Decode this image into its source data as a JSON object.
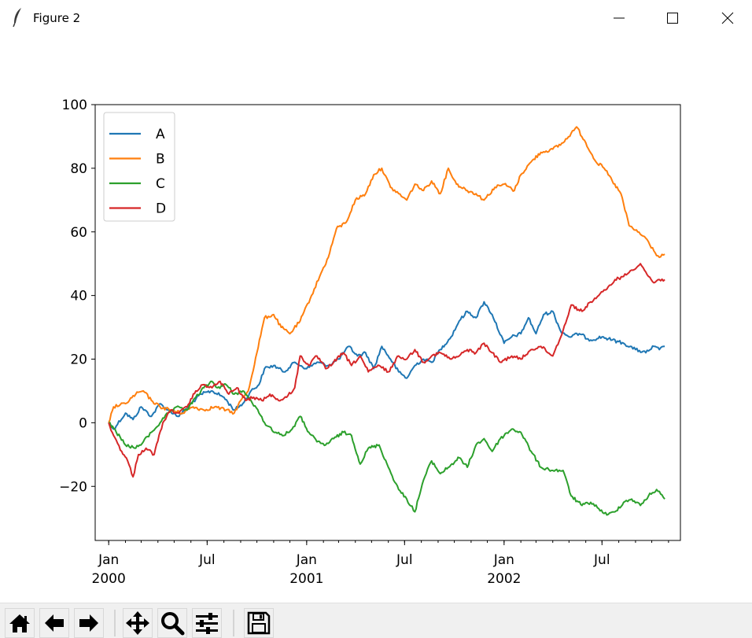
{
  "window": {
    "title": "Figure 2",
    "controls": [
      "minimize-icon",
      "maximize-icon",
      "close-icon"
    ],
    "app_icon": "feather-icon"
  },
  "toolbar": {
    "tools": [
      {
        "name": "home",
        "icon": "home-icon"
      },
      {
        "name": "back",
        "icon": "arrow-left-icon"
      },
      {
        "name": "forward",
        "icon": "arrow-right-icon"
      },
      {
        "name": "pan",
        "icon": "move-icon"
      },
      {
        "name": "zoom",
        "icon": "magnifier-icon"
      },
      {
        "name": "subplots",
        "icon": "sliders-icon"
      },
      {
        "name": "save",
        "icon": "floppy-icon"
      }
    ]
  },
  "chart_data": {
    "type": "line",
    "title": "",
    "xlabel": "",
    "ylabel": "",
    "x_range": [
      "1999-12-07",
      "2002-11-23"
    ],
    "ylim": [
      -37,
      100
    ],
    "yticks": [
      100,
      80,
      60,
      40,
      20,
      0,
      -20
    ],
    "xticks": [
      {
        "date": "2000-01-01",
        "label": "Jan",
        "sub": "2000"
      },
      {
        "date": "2000-07-01",
        "label": "Jul",
        "sub": ""
      },
      {
        "date": "2001-01-01",
        "label": "Jan",
        "sub": "2001"
      },
      {
        "date": "2001-07-01",
        "label": "Jul",
        "sub": ""
      },
      {
        "date": "2002-01-01",
        "label": "Jan",
        "sub": "2002"
      },
      {
        "date": "2002-07-01",
        "label": "Jul",
        "sub": ""
      }
    ],
    "minor_ticks": "monthly",
    "grid": false,
    "legend": "upper-left",
    "series": [
      {
        "name": "A",
        "color": "#1f77b4",
        "points": [
          [
            "2000-01-01",
            0
          ],
          [
            "2000-01-10",
            -2
          ],
          [
            "2000-02-01",
            3
          ],
          [
            "2000-02-15",
            1
          ],
          [
            "2000-03-01",
            5
          ],
          [
            "2000-03-20",
            2
          ],
          [
            "2000-04-05",
            6
          ],
          [
            "2000-04-20",
            4
          ],
          [
            "2000-05-10",
            2
          ],
          [
            "2000-06-01",
            6
          ],
          [
            "2000-06-20",
            9
          ],
          [
            "2000-07-10",
            10
          ],
          [
            "2000-08-01",
            8
          ],
          [
            "2000-08-20",
            4
          ],
          [
            "2000-09-05",
            6
          ],
          [
            "2000-09-20",
            10
          ],
          [
            "2000-10-05",
            12
          ],
          [
            "2000-10-15",
            17
          ],
          [
            "2000-11-01",
            18
          ],
          [
            "2000-11-20",
            16
          ],
          [
            "2000-12-10",
            19
          ],
          [
            "2001-01-01",
            17
          ],
          [
            "2001-01-20",
            19
          ],
          [
            "2001-02-10",
            18
          ],
          [
            "2001-03-01",
            20
          ],
          [
            "2001-03-20",
            24
          ],
          [
            "2001-04-05",
            21
          ],
          [
            "2001-04-20",
            22
          ],
          [
            "2001-05-05",
            17
          ],
          [
            "2001-05-20",
            24
          ],
          [
            "2001-06-05",
            20
          ],
          [
            "2001-06-20",
            16
          ],
          [
            "2001-07-05",
            14
          ],
          [
            "2001-07-20",
            18
          ],
          [
            "2001-08-05",
            20
          ],
          [
            "2001-08-20",
            19
          ],
          [
            "2001-09-05",
            23
          ],
          [
            "2001-09-25",
            27
          ],
          [
            "2001-10-10",
            32
          ],
          [
            "2001-10-25",
            35
          ],
          [
            "2001-11-10",
            33
          ],
          [
            "2001-11-25",
            38
          ],
          [
            "2001-12-10",
            34
          ],
          [
            "2002-01-01",
            25
          ],
          [
            "2002-01-15",
            27
          ],
          [
            "2002-02-01",
            28
          ],
          [
            "2002-02-15",
            33
          ],
          [
            "2002-03-01",
            28
          ],
          [
            "2002-03-15",
            34
          ],
          [
            "2002-04-01",
            35
          ],
          [
            "2002-04-15",
            29
          ],
          [
            "2002-05-01",
            27
          ],
          [
            "2002-05-20",
            28
          ],
          [
            "2002-06-10",
            26
          ],
          [
            "2002-07-01",
            27
          ],
          [
            "2002-07-20",
            26
          ],
          [
            "2002-08-10",
            25
          ],
          [
            "2002-09-01",
            23
          ],
          [
            "2002-09-20",
            22
          ],
          [
            "2002-10-05",
            24
          ],
          [
            "2002-10-15",
            23
          ],
          [
            "2002-10-25",
            24
          ]
        ]
      },
      {
        "name": "B",
        "color": "#ff7f0e",
        "points": [
          [
            "2000-01-01",
            0
          ],
          [
            "2000-01-10",
            5
          ],
          [
            "2000-02-01",
            6
          ],
          [
            "2000-02-20",
            9
          ],
          [
            "2000-03-05",
            10
          ],
          [
            "2000-03-20",
            7
          ],
          [
            "2000-04-05",
            5
          ],
          [
            "2000-04-25",
            4
          ],
          [
            "2000-05-15",
            3
          ],
          [
            "2000-06-05",
            5
          ],
          [
            "2000-06-25",
            4
          ],
          [
            "2000-07-15",
            5
          ],
          [
            "2000-08-05",
            4
          ],
          [
            "2000-08-20",
            3
          ],
          [
            "2000-09-01",
            7
          ],
          [
            "2000-09-15",
            10
          ],
          [
            "2000-10-01",
            22
          ],
          [
            "2000-10-15",
            33
          ],
          [
            "2000-11-01",
            34
          ],
          [
            "2000-11-15",
            30
          ],
          [
            "2000-12-01",
            28
          ],
          [
            "2000-12-20",
            32
          ],
          [
            "2001-01-10",
            40
          ],
          [
            "2001-01-25",
            46
          ],
          [
            "2001-02-10",
            52
          ],
          [
            "2001-02-25",
            61
          ],
          [
            "2001-03-15",
            63
          ],
          [
            "2001-04-01",
            70
          ],
          [
            "2001-04-20",
            72
          ],
          [
            "2001-05-05",
            78
          ],
          [
            "2001-05-20",
            80
          ],
          [
            "2001-06-05",
            74
          ],
          [
            "2001-06-20",
            72
          ],
          [
            "2001-07-05",
            70
          ],
          [
            "2001-07-20",
            75
          ],
          [
            "2001-08-05",
            73
          ],
          [
            "2001-08-20",
            76
          ],
          [
            "2001-09-05",
            72
          ],
          [
            "2001-09-20",
            80
          ],
          [
            "2001-10-05",
            75
          ],
          [
            "2001-10-25",
            73
          ],
          [
            "2001-11-10",
            72
          ],
          [
            "2001-11-25",
            70
          ],
          [
            "2001-12-15",
            74
          ],
          [
            "2002-01-01",
            75
          ],
          [
            "2002-01-20",
            73
          ],
          [
            "2002-02-01",
            78
          ],
          [
            "2002-02-20",
            82
          ],
          [
            "2002-03-10",
            85
          ],
          [
            "2002-04-01",
            86
          ],
          [
            "2002-04-20",
            88
          ],
          [
            "2002-05-05",
            91
          ],
          [
            "2002-05-15",
            93
          ],
          [
            "2002-06-01",
            88
          ],
          [
            "2002-06-20",
            82
          ],
          [
            "2002-07-05",
            80
          ],
          [
            "2002-07-20",
            76
          ],
          [
            "2002-08-05",
            72
          ],
          [
            "2002-08-20",
            62
          ],
          [
            "2002-09-05",
            60
          ],
          [
            "2002-09-20",
            58
          ],
          [
            "2002-10-05",
            54
          ],
          [
            "2002-10-15",
            52
          ],
          [
            "2002-10-25",
            53
          ]
        ]
      },
      {
        "name": "C",
        "color": "#2ca02c",
        "points": [
          [
            "2000-01-01",
            0
          ],
          [
            "2000-01-15",
            -3
          ],
          [
            "2000-02-01",
            -7
          ],
          [
            "2000-02-20",
            -8
          ],
          [
            "2000-03-05",
            -6
          ],
          [
            "2000-03-20",
            -3
          ],
          [
            "2000-04-05",
            0
          ],
          [
            "2000-04-20",
            3
          ],
          [
            "2000-05-10",
            5
          ],
          [
            "2000-05-25",
            4
          ],
          [
            "2000-06-10",
            8
          ],
          [
            "2000-06-25",
            11
          ],
          [
            "2000-07-10",
            13
          ],
          [
            "2000-07-20",
            11
          ],
          [
            "2000-08-05",
            12
          ],
          [
            "2000-08-20",
            9
          ],
          [
            "2000-09-05",
            10
          ],
          [
            "2000-09-20",
            7
          ],
          [
            "2000-10-05",
            3
          ],
          [
            "2000-10-20",
            -1
          ],
          [
            "2000-11-05",
            -3
          ],
          [
            "2000-11-20",
            -4
          ],
          [
            "2000-12-05",
            -2
          ],
          [
            "2000-12-20",
            2
          ],
          [
            "2001-01-05",
            -3
          ],
          [
            "2001-01-20",
            -6
          ],
          [
            "2001-02-05",
            -7
          ],
          [
            "2001-02-20",
            -5
          ],
          [
            "2001-03-10",
            -3
          ],
          [
            "2001-03-25",
            -4
          ],
          [
            "2001-04-10",
            -13
          ],
          [
            "2001-04-25",
            -8
          ],
          [
            "2001-05-15",
            -7
          ],
          [
            "2001-06-01",
            -14
          ],
          [
            "2001-06-20",
            -21
          ],
          [
            "2001-07-05",
            -24
          ],
          [
            "2001-07-20",
            -28
          ],
          [
            "2001-08-05",
            -18
          ],
          [
            "2001-08-20",
            -12
          ],
          [
            "2001-09-05",
            -16
          ],
          [
            "2001-09-20",
            -14
          ],
          [
            "2001-10-10",
            -11
          ],
          [
            "2001-10-25",
            -14
          ],
          [
            "2001-11-10",
            -7
          ],
          [
            "2001-11-25",
            -5
          ],
          [
            "2001-12-10",
            -9
          ],
          [
            "2001-12-25",
            -5
          ],
          [
            "2002-01-15",
            -2
          ],
          [
            "2002-02-01",
            -3
          ],
          [
            "2002-02-20",
            -9
          ],
          [
            "2002-03-10",
            -14
          ],
          [
            "2002-04-01",
            -15
          ],
          [
            "2002-04-20",
            -15
          ],
          [
            "2002-05-05",
            -23
          ],
          [
            "2002-05-25",
            -26
          ],
          [
            "2002-06-10",
            -25
          ],
          [
            "2002-06-25",
            -27
          ],
          [
            "2002-07-10",
            -29
          ],
          [
            "2002-07-25",
            -28
          ],
          [
            "2002-08-10",
            -25
          ],
          [
            "2002-08-25",
            -24
          ],
          [
            "2002-09-10",
            -26
          ],
          [
            "2002-09-25",
            -23
          ],
          [
            "2002-10-10",
            -21
          ],
          [
            "2002-10-25",
            -24
          ]
        ]
      },
      {
        "name": "D",
        "color": "#d62728",
        "points": [
          [
            "2000-01-01",
            0
          ],
          [
            "2000-01-10",
            -4
          ],
          [
            "2000-01-25",
            -9
          ],
          [
            "2000-02-05",
            -12
          ],
          [
            "2000-02-15",
            -17
          ],
          [
            "2000-02-25",
            -10
          ],
          [
            "2000-03-10",
            -8
          ],
          [
            "2000-03-25",
            -10
          ],
          [
            "2000-04-10",
            0
          ],
          [
            "2000-04-25",
            4
          ],
          [
            "2000-05-10",
            3
          ],
          [
            "2000-05-25",
            5
          ],
          [
            "2000-06-10",
            10
          ],
          [
            "2000-06-25",
            12
          ],
          [
            "2000-07-10",
            11
          ],
          [
            "2000-07-25",
            13
          ],
          [
            "2000-08-10",
            9
          ],
          [
            "2000-08-25",
            11
          ],
          [
            "2000-09-10",
            7
          ],
          [
            "2000-09-25",
            8
          ],
          [
            "2000-10-10",
            7
          ],
          [
            "2000-10-25",
            9
          ],
          [
            "2000-11-10",
            7
          ],
          [
            "2000-11-25",
            8
          ],
          [
            "2000-12-10",
            11
          ],
          [
            "2000-12-20",
            21
          ],
          [
            "2001-01-05",
            18
          ],
          [
            "2001-01-20",
            21
          ],
          [
            "2001-02-05",
            17
          ],
          [
            "2001-02-20",
            19
          ],
          [
            "2001-03-10",
            22
          ],
          [
            "2001-03-25",
            18
          ],
          [
            "2001-04-10",
            21
          ],
          [
            "2001-04-25",
            16
          ],
          [
            "2001-05-15",
            18
          ],
          [
            "2001-06-01",
            16
          ],
          [
            "2001-06-20",
            21
          ],
          [
            "2001-07-05",
            20
          ],
          [
            "2001-07-20",
            23
          ],
          [
            "2001-08-05",
            19
          ],
          [
            "2001-08-20",
            21
          ],
          [
            "2001-09-05",
            22
          ],
          [
            "2001-09-25",
            20
          ],
          [
            "2001-10-10",
            21
          ],
          [
            "2001-10-25",
            23
          ],
          [
            "2001-11-10",
            22
          ],
          [
            "2001-11-25",
            25
          ],
          [
            "2001-12-10",
            22
          ],
          [
            "2001-12-25",
            19
          ],
          [
            "2002-01-15",
            21
          ],
          [
            "2002-02-01",
            20
          ],
          [
            "2002-02-20",
            23
          ],
          [
            "2002-03-10",
            24
          ],
          [
            "2002-04-01",
            21
          ],
          [
            "2002-04-20",
            29
          ],
          [
            "2002-05-05",
            37
          ],
          [
            "2002-05-25",
            35
          ],
          [
            "2002-06-10",
            38
          ],
          [
            "2002-06-25",
            40
          ],
          [
            "2002-07-10",
            42
          ],
          [
            "2002-07-25",
            45
          ],
          [
            "2002-08-10",
            46
          ],
          [
            "2002-08-25",
            48
          ],
          [
            "2002-09-10",
            50
          ],
          [
            "2002-09-25",
            46
          ],
          [
            "2002-10-05",
            44
          ],
          [
            "2002-10-15",
            45
          ],
          [
            "2002-10-25",
            45
          ]
        ]
      }
    ]
  }
}
